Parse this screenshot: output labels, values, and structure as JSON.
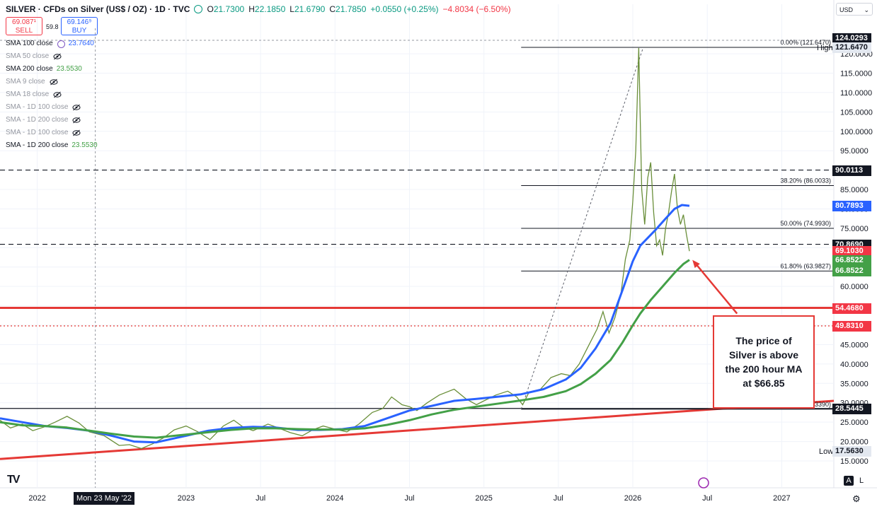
{
  "header": {
    "symbol": "SILVER · CFDs on Silver (US$ / OZ) · 1D · TVC",
    "open_label": "O",
    "open": "21.7300",
    "high_label": "H",
    "high": "22.1850",
    "low_label": "L",
    "low": "21.6790",
    "close_label": "C",
    "close": "21.7850",
    "change": "+0.0550 (+0.25%)",
    "change2": "−4.8034 (−6.50%)"
  },
  "trade": {
    "sell_price": "69.087¹",
    "sell_label": "SELL",
    "buy_price": "69.146⁹",
    "buy_label": "BUY",
    "spread": "59.8"
  },
  "indicators": [
    {
      "name": "SMA 100 close",
      "value": "23.7640",
      "color": "#2962ff",
      "visible": true
    },
    {
      "name": "SMA 50 close",
      "value": "",
      "visible": false
    },
    {
      "name": "SMA 200 close",
      "value": "23.5530",
      "color": "#43a047",
      "visible": true
    },
    {
      "name": "SMA 9 close",
      "value": "",
      "visible": false
    },
    {
      "name": "SMA 18 close",
      "value": "",
      "visible": false
    },
    {
      "name": "SMA - 1D 100 close",
      "value": "",
      "visible": false
    },
    {
      "name": "SMA - 1D 200 close",
      "value": "",
      "visible": false
    },
    {
      "name": "SMA - 1D 100 close",
      "value": "",
      "visible": false
    },
    {
      "name": "SMA - 1D 200 close",
      "value": "23.5530",
      "color": "#43a047",
      "visible": true
    }
  ],
  "currency_select": "USD",
  "date_tag": "Mon 23 May '22",
  "callout_text": [
    "The price of",
    "Silver is above",
    "the 200 hour MA",
    "at $66.85"
  ],
  "fib_labels": {
    "f0": "0.00% (121.6470)",
    "f382": "38.20% (86.0033)",
    "f50": "50.00% (74.9930)",
    "f618": "61.80% (63.9827)",
    "f100": "3390)"
  },
  "high_label": "High",
  "low_label": "Low",
  "axis_buttons": {
    "auto": "A",
    "log": "L"
  },
  "price_labels": [
    {
      "value": "124.0293",
      "price": 124.0293,
      "bg": "#131722"
    },
    {
      "value": "121.6470",
      "price": 121.647,
      "bg": "#e3e8f0",
      "fg": "#131722"
    },
    {
      "value": "90.0113",
      "price": 90.0113,
      "bg": "#131722"
    },
    {
      "value": "80.7893",
      "price": 80.7893,
      "bg": "#2962ff"
    },
    {
      "value": "70.8690",
      "price": 70.869,
      "bg": "#131722"
    },
    {
      "value": "69.1030",
      "price": 69.103,
      "bg": "#f23645"
    },
    {
      "value": "66.8522",
      "price": 66.8522,
      "bg": "#43a047"
    },
    {
      "value": "66.8522",
      "price": 66.8522,
      "bg": "#43a047",
      "offset": 15
    },
    {
      "value": "54.4680",
      "price": 54.468,
      "bg": "#f23645"
    },
    {
      "value": "49.8310",
      "price": 49.831,
      "bg": "#f23645"
    },
    {
      "value": "28.5445",
      "price": 28.5445,
      "bg": "#131722"
    },
    {
      "value": "17.5630",
      "price": 17.563,
      "bg": "#e3e8f0",
      "fg": "#131722"
    }
  ],
  "chart_data": {
    "type": "line",
    "y_ticks": [
      15,
      20,
      25,
      30,
      35,
      40,
      45,
      50,
      55,
      60,
      65,
      70,
      75,
      80,
      85,
      90,
      95,
      100,
      105,
      110,
      115,
      120
    ],
    "y_tick_labels": [
      "15.0000",
      "20.0000",
      "25.0000",
      "30.0000",
      "35.0000",
      "40.0000",
      "45.0000",
      "50.0000",
      "55.0000",
      "60.0000",
      "65.0000",
      "70.0000",
      "75.0000",
      "80.0000",
      "85.0000",
      "90.0000",
      "95.0000",
      "100.0000",
      "105.0000",
      "110.0000",
      "115.0000",
      "120.0000"
    ],
    "x_labels": [
      "2022",
      "2023",
      "Jul",
      "2024",
      "Jul",
      "2025",
      "Jul",
      "2026",
      "Jul",
      "2027"
    ],
    "x_label_years": [
      2022.0,
      2023.0,
      2023.5,
      2024.0,
      2024.5,
      2025.0,
      2025.5,
      2026.0,
      2026.5,
      2027.0
    ],
    "ylim": [
      11.5,
      126
    ],
    "xlim": [
      2021.75,
      2027.35
    ],
    "price_series": [
      [
        2021.75,
        25.5
      ],
      [
        2021.82,
        23.5
      ],
      [
        2021.9,
        24.5
      ],
      [
        2021.97,
        22.8
      ],
      [
        2022.05,
        23.8
      ],
      [
        2022.12,
        25.0
      ],
      [
        2022.2,
        26.5
      ],
      [
        2022.28,
        24.8
      ],
      [
        2022.35,
        22.5
      ],
      [
        2022.45,
        21.5
      ],
      [
        2022.55,
        19.0
      ],
      [
        2022.62,
        19.2
      ],
      [
        2022.7,
        18.2
      ],
      [
        2022.78,
        19.5
      ],
      [
        2022.85,
        21.0
      ],
      [
        2022.92,
        23.0
      ],
      [
        2023.0,
        24.0
      ],
      [
        2023.08,
        22.5
      ],
      [
        2023.16,
        20.5
      ],
      [
        2023.25,
        24.0
      ],
      [
        2023.32,
        25.5
      ],
      [
        2023.38,
        23.8
      ],
      [
        2023.45,
        22.8
      ],
      [
        2023.55,
        24.5
      ],
      [
        2023.62,
        23.5
      ],
      [
        2023.7,
        22.3
      ],
      [
        2023.78,
        21.5
      ],
      [
        2023.85,
        23.0
      ],
      [
        2023.92,
        24.0
      ],
      [
        2024.0,
        23.2
      ],
      [
        2024.08,
        22.5
      ],
      [
        2024.16,
        24.5
      ],
      [
        2024.25,
        27.5
      ],
      [
        2024.32,
        28.5
      ],
      [
        2024.38,
        31.5
      ],
      [
        2024.45,
        29.5
      ],
      [
        2024.5,
        29.0
      ],
      [
        2024.55,
        28.0
      ],
      [
        2024.62,
        30.0
      ],
      [
        2024.7,
        32.0
      ],
      [
        2024.8,
        33.5
      ],
      [
        2024.88,
        31.0
      ],
      [
        2024.95,
        29.5
      ],
      [
        2025.0,
        30.5
      ],
      [
        2025.08,
        32.0
      ],
      [
        2025.16,
        33.0
      ],
      [
        2025.22,
        31.5
      ],
      [
        2025.26,
        29.5
      ],
      [
        2025.3,
        32.5
      ],
      [
        2025.38,
        33.5
      ],
      [
        2025.45,
        36.5
      ],
      [
        2025.52,
        37.5
      ],
      [
        2025.58,
        37.0
      ],
      [
        2025.64,
        40.0
      ],
      [
        2025.7,
        44.5
      ],
      [
        2025.76,
        49.0
      ],
      [
        2025.8,
        53.5
      ],
      [
        2025.84,
        48.0
      ],
      [
        2025.88,
        52.0
      ],
      [
        2025.92,
        58.0
      ],
      [
        2025.95,
        67.0
      ],
      [
        2025.98,
        72.0
      ],
      [
        2026.0,
        82.0
      ],
      [
        2026.02,
        95.0
      ],
      [
        2026.04,
        121.5
      ],
      [
        2026.06,
        85.0
      ],
      [
        2026.08,
        76.0
      ],
      [
        2026.1,
        88.0
      ],
      [
        2026.12,
        92.0
      ],
      [
        2026.14,
        79.0
      ],
      [
        2026.16,
        70.5
      ],
      [
        2026.18,
        72.0
      ],
      [
        2026.2,
        68.0
      ],
      [
        2026.22,
        75.0
      ],
      [
        2026.24,
        79.0
      ],
      [
        2026.26,
        84.5
      ],
      [
        2026.28,
        89.0
      ],
      [
        2026.3,
        80.0
      ],
      [
        2026.32,
        76.0
      ],
      [
        2026.34,
        78.5
      ],
      [
        2026.36,
        73.5
      ],
      [
        2026.38,
        69.1
      ]
    ],
    "series": [
      {
        "name": "SMA 100 close",
        "color": "#2962ff",
        "points": [
          [
            2021.75,
            26.0
          ],
          [
            2021.9,
            25.0
          ],
          [
            2022.05,
            24.0
          ],
          [
            2022.2,
            23.5
          ],
          [
            2022.35,
            22.8
          ],
          [
            2022.5,
            21.5
          ],
          [
            2022.65,
            20.0
          ],
          [
            2022.8,
            19.8
          ],
          [
            2023.0,
            21.5
          ],
          [
            2023.15,
            22.8
          ],
          [
            2023.3,
            23.5
          ],
          [
            2023.45,
            23.8
          ],
          [
            2023.6,
            23.6
          ],
          [
            2023.75,
            23.0
          ],
          [
            2023.9,
            23.0
          ],
          [
            2024.05,
            23.2
          ],
          [
            2024.2,
            24.0
          ],
          [
            2024.35,
            26.0
          ],
          [
            2024.5,
            28.0
          ],
          [
            2024.65,
            29.2
          ],
          [
            2024.8,
            30.5
          ],
          [
            2024.95,
            31.0
          ],
          [
            2025.1,
            31.6
          ],
          [
            2025.25,
            32.2
          ],
          [
            2025.4,
            33.5
          ],
          [
            2025.55,
            36.0
          ],
          [
            2025.65,
            39.0
          ],
          [
            2025.75,
            44.0
          ],
          [
            2025.85,
            50.5
          ],
          [
            2025.93,
            59.0
          ],
          [
            2026.0,
            66.5
          ],
          [
            2026.05,
            70.5
          ],
          [
            2026.1,
            72.5
          ],
          [
            2026.15,
            74.5
          ],
          [
            2026.22,
            77.5
          ],
          [
            2026.28,
            80.0
          ],
          [
            2026.33,
            81.0
          ],
          [
            2026.38,
            80.8
          ]
        ]
      },
      {
        "name": "SMA 200 close",
        "color": "#43a047",
        "points": [
          [
            2021.75,
            25.0
          ],
          [
            2021.9,
            24.2
          ],
          [
            2022.05,
            24.0
          ],
          [
            2022.2,
            23.6
          ],
          [
            2022.35,
            22.8
          ],
          [
            2022.5,
            22.0
          ],
          [
            2022.65,
            21.3
          ],
          [
            2022.8,
            21.0
          ],
          [
            2023.0,
            21.8
          ],
          [
            2023.15,
            22.4
          ],
          [
            2023.3,
            23.0
          ],
          [
            2023.45,
            23.4
          ],
          [
            2023.6,
            23.4
          ],
          [
            2023.75,
            23.2
          ],
          [
            2023.9,
            23.1
          ],
          [
            2024.05,
            23.1
          ],
          [
            2024.2,
            23.4
          ],
          [
            2024.35,
            24.3
          ],
          [
            2024.5,
            25.5
          ],
          [
            2024.65,
            27.0
          ],
          [
            2024.8,
            28.2
          ],
          [
            2024.95,
            29.0
          ],
          [
            2025.1,
            29.8
          ],
          [
            2025.25,
            30.6
          ],
          [
            2025.4,
            31.5
          ],
          [
            2025.55,
            33.0
          ],
          [
            2025.65,
            34.8
          ],
          [
            2025.75,
            37.5
          ],
          [
            2025.85,
            41.0
          ],
          [
            2025.93,
            45.5
          ],
          [
            2026.0,
            50.0
          ],
          [
            2026.05,
            53.0
          ],
          [
            2026.12,
            56.5
          ],
          [
            2026.2,
            60.0
          ],
          [
            2026.28,
            63.5
          ],
          [
            2026.34,
            65.8
          ],
          [
            2026.38,
            66.85
          ]
        ]
      }
    ],
    "trendline_red": [
      [
        2021.75,
        15.5
      ],
      [
        2027.35,
        30.5
      ]
    ],
    "h_lines": [
      {
        "price": 90.0113,
        "style": "dashed",
        "color": "#131722"
      },
      {
        "price": 70.869,
        "style": "dashed",
        "color": "#131722"
      },
      {
        "price": 54.468,
        "style": "solid",
        "color": "#e53935"
      },
      {
        "price": 49.831,
        "style": "dotted",
        "color": "#e53935"
      },
      {
        "price": 28.5445,
        "style": "solid",
        "color": "#131722"
      }
    ],
    "fib_levels": [
      121.647,
      86.0033,
      74.993,
      63.9827,
      28.339
    ],
    "fib_x_start": 2025.25,
    "fib_diagonal": [
      [
        2025.25,
        28.339
      ],
      [
        2026.07,
        121.647
      ]
    ],
    "vertical_cursor": 2022.39,
    "arrow": {
      "from": [
        2026.7,
        53.0
      ],
      "to": [
        2026.4,
        66.85
      ]
    }
  }
}
